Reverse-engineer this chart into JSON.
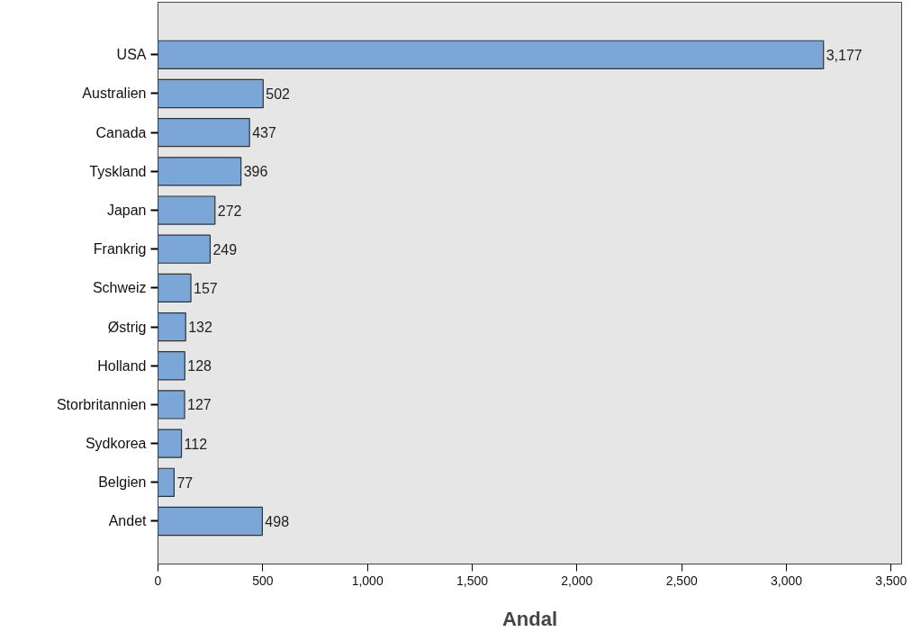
{
  "chart_data": {
    "type": "bar",
    "orientation": "horizontal",
    "xlabel": "Andal",
    "categories": [
      "USA",
      "Australien",
      "Canada",
      "Tyskland",
      "Japan",
      "Frankrig",
      "Schweiz",
      "Østrig",
      "Holland",
      "Storbritannien",
      "Sydkorea",
      "Belgien",
      "Andet"
    ],
    "values": [
      3177,
      502,
      437,
      396,
      272,
      249,
      157,
      132,
      128,
      127,
      112,
      77,
      498
    ],
    "value_labels": [
      "3,177",
      "502",
      "437",
      "396",
      "272",
      "249",
      "157",
      "132",
      "128",
      "127",
      "112",
      "77",
      "498"
    ],
    "color": "#7aa7d8",
    "xlim": [
      0,
      3550
    ],
    "xticks": [
      0,
      500,
      {
        "value": 1000,
        "label": "1,000"
      },
      {
        "value": 1500,
        "label": "1,500"
      },
      {
        "value": 2000,
        "label": "2,000"
      },
      {
        "value": 2500,
        "label": "2,500"
      },
      {
        "value": 3000,
        "label": "3,000"
      },
      {
        "value": 3500,
        "label": "3,500"
      }
    ],
    "grid": false
  }
}
